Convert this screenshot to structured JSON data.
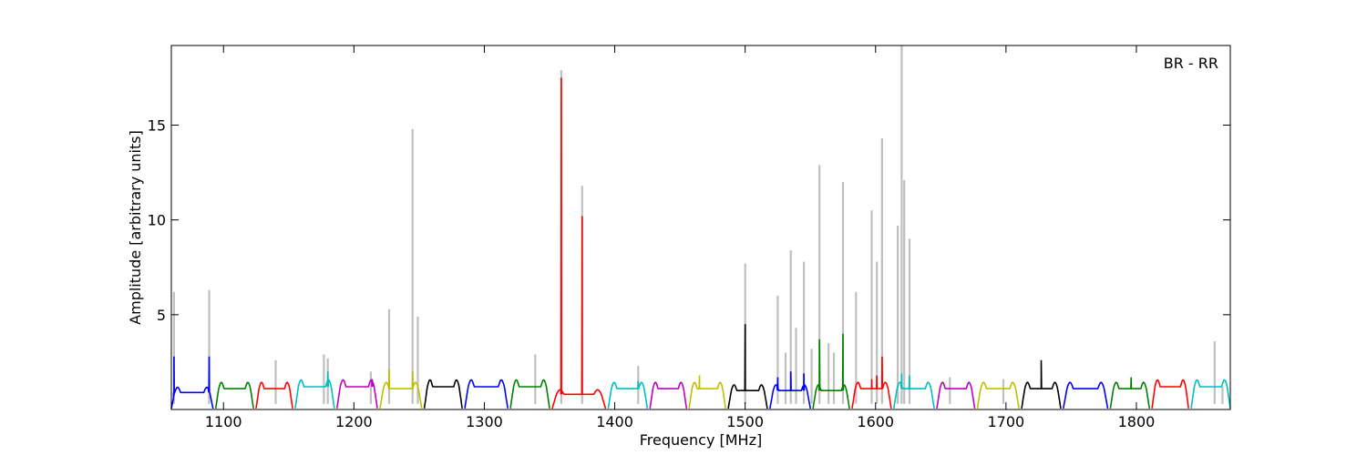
{
  "chart_data": {
    "type": "line",
    "title": "",
    "annotation": "BR - RR",
    "xlabel": "Frequency [MHz]",
    "ylabel": "Amplitude [arbitrary units]",
    "xlim": [
      1060,
      1872
    ],
    "ylim": [
      0,
      19.2
    ],
    "xticks": [
      1100,
      1200,
      1300,
      1400,
      1500,
      1600,
      1700,
      1800
    ],
    "yticks": [
      5,
      10,
      15
    ],
    "grid": false,
    "legend": "none",
    "colors": {
      "raw": "#bfbfbf",
      "cycle": [
        "#0000ff",
        "#008000",
        "#ff0000",
        "#00bfbf",
        "#bf00bf",
        "#bfbf00",
        "#000000"
      ]
    },
    "raw_spikes": [
      [
        1062,
        6.2
      ],
      [
        1089,
        6.3
      ],
      [
        1140,
        2.6
      ],
      [
        1177,
        2.9
      ],
      [
        1180,
        2.7
      ],
      [
        1213,
        2.0
      ],
      [
        1227,
        5.3
      ],
      [
        1245,
        14.8
      ],
      [
        1249,
        4.9
      ],
      [
        1339,
        2.9
      ],
      [
        1359,
        17.9
      ],
      [
        1375,
        11.8
      ],
      [
        1418,
        2.3
      ],
      [
        1500,
        7.7
      ],
      [
        1525,
        6.0
      ],
      [
        1531,
        3.0
      ],
      [
        1535,
        8.4
      ],
      [
        1539,
        4.3
      ],
      [
        1545,
        7.8
      ],
      [
        1551,
        3.2
      ],
      [
        1557,
        12.9
      ],
      [
        1564,
        3.5
      ],
      [
        1568,
        3.0
      ],
      [
        1575,
        12.0
      ],
      [
        1585,
        6.2
      ],
      [
        1597,
        10.5
      ],
      [
        1601,
        7.8
      ],
      [
        1605,
        14.3
      ],
      [
        1617,
        9.7
      ],
      [
        1620,
        19.2
      ],
      [
        1622,
        12.1
      ],
      [
        1626,
        9.0
      ],
      [
        1657,
        1.7
      ],
      [
        1698,
        1.6
      ],
      [
        1860,
        3.6
      ],
      [
        1866,
        1.2
      ]
    ],
    "bands": [
      {
        "x": [
          1060,
          1092
        ],
        "base": 0.9,
        "color": "#0000ff",
        "spikes": [
          [
            1062,
            2.8
          ],
          [
            1089,
            2.8
          ]
        ]
      },
      {
        "x": [
          1094,
          1123
        ],
        "base": 1.1,
        "color": "#008000",
        "spikes": []
      },
      {
        "x": [
          1125,
          1153
        ],
        "base": 1.1,
        "color": "#ff0000",
        "spikes": []
      },
      {
        "x": [
          1155,
          1185
        ],
        "base": 1.2,
        "color": "#00bfbf",
        "spikes": [
          [
            1180,
            2.0
          ]
        ]
      },
      {
        "x": [
          1187,
          1218
        ],
        "base": 1.2,
        "color": "#bf00bf",
        "spikes": [
          [
            1214,
            1.6
          ]
        ]
      },
      {
        "x": [
          1220,
          1252
        ],
        "base": 1.1,
        "color": "#bfbf00",
        "spikes": [
          [
            1227,
            2.1
          ],
          [
            1245,
            2.0
          ]
        ]
      },
      {
        "x": [
          1254,
          1283
        ],
        "base": 1.2,
        "color": "#000000",
        "spikes": []
      },
      {
        "x": [
          1285,
          1318
        ],
        "base": 1.2,
        "color": "#0000ff",
        "spikes": []
      },
      {
        "x": [
          1320,
          1350
        ],
        "base": 1.2,
        "color": "#008000",
        "spikes": []
      },
      {
        "x": [
          1352,
          1393
        ],
        "base": 0.8,
        "color": "#ff0000",
        "spikes": [
          [
            1359,
            17.5
          ],
          [
            1375,
            10.2
          ]
        ]
      },
      {
        "x": [
          1395,
          1425
        ],
        "base": 1.1,
        "color": "#00bfbf",
        "spikes": [
          [
            1418,
            1.5
          ]
        ]
      },
      {
        "x": [
          1427,
          1455
        ],
        "base": 1.1,
        "color": "#bf00bf",
        "spikes": []
      },
      {
        "x": [
          1457,
          1485
        ],
        "base": 1.1,
        "color": "#bfbf00",
        "spikes": [
          [
            1465,
            1.8
          ]
        ]
      },
      {
        "x": [
          1487,
          1517
        ],
        "base": 1.0,
        "color": "#000000",
        "spikes": [
          [
            1500,
            4.5
          ]
        ]
      },
      {
        "x": [
          1519,
          1550
        ],
        "base": 1.0,
        "color": "#0000ff",
        "spikes": [
          [
            1525,
            1.7
          ],
          [
            1535,
            2.0
          ],
          [
            1545,
            1.9
          ]
        ]
      },
      {
        "x": [
          1552,
          1580
        ],
        "base": 1.0,
        "color": "#008000",
        "spikes": [
          [
            1557,
            3.7
          ],
          [
            1575,
            4.0
          ]
        ]
      },
      {
        "x": [
          1582,
          1612
        ],
        "base": 1.1,
        "color": "#ff0000",
        "spikes": [
          [
            1597,
            1.6
          ],
          [
            1601,
            1.8
          ],
          [
            1605,
            2.8
          ]
        ]
      },
      {
        "x": [
          1614,
          1645
        ],
        "base": 1.1,
        "color": "#00bfbf",
        "spikes": [
          [
            1620,
            1.9
          ],
          [
            1626,
            1.8
          ]
        ]
      },
      {
        "x": [
          1647,
          1676
        ],
        "base": 1.1,
        "color": "#bf00bf",
        "spikes": []
      },
      {
        "x": [
          1678,
          1710
        ],
        "base": 1.1,
        "color": "#bfbf00",
        "spikes": []
      },
      {
        "x": [
          1712,
          1742
        ],
        "base": 1.1,
        "color": "#000000",
        "spikes": [
          [
            1727,
            2.6
          ]
        ]
      },
      {
        "x": [
          1744,
          1778
        ],
        "base": 1.1,
        "color": "#0000ff",
        "spikes": []
      },
      {
        "x": [
          1780,
          1810
        ],
        "base": 1.1,
        "color": "#008000",
        "spikes": [
          [
            1796,
            1.7
          ]
        ]
      },
      {
        "x": [
          1812,
          1840
        ],
        "base": 1.2,
        "color": "#ff0000",
        "spikes": []
      },
      {
        "x": [
          1842,
          1872
        ],
        "base": 1.2,
        "color": "#00bfbf",
        "spikes": []
      }
    ]
  }
}
